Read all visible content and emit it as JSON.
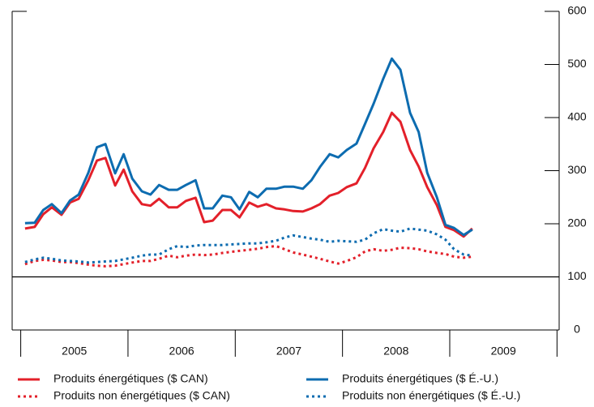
{
  "chart_data": {
    "type": "line",
    "x": [
      2005.04,
      2005.13,
      2005.21,
      2005.29,
      2005.38,
      2005.46,
      2005.54,
      2005.63,
      2005.71,
      2005.79,
      2005.88,
      2005.96,
      2006.04,
      2006.13,
      2006.21,
      2006.29,
      2006.38,
      2006.46,
      2006.54,
      2006.63,
      2006.71,
      2006.79,
      2006.88,
      2006.96,
      2007.04,
      2007.13,
      2007.21,
      2007.29,
      2007.38,
      2007.46,
      2007.54,
      2007.63,
      2007.71,
      2007.79,
      2007.88,
      2007.96,
      2008.04,
      2008.13,
      2008.21,
      2008.29,
      2008.38,
      2008.46,
      2008.54,
      2008.63,
      2008.71,
      2008.79,
      2008.88,
      2008.96,
      2009.04,
      2009.13,
      2009.21
    ],
    "xlim": [
      2004.92,
      2010.02
    ],
    "xticks": [
      2005,
      2006,
      2007,
      2008,
      2009,
      2010
    ],
    "year_labels": [
      "2005",
      "2006",
      "2007",
      "2008",
      "2009"
    ],
    "ylim": [
      0,
      600
    ],
    "yticks": [
      0,
      100,
      200,
      300,
      400,
      500,
      600
    ],
    "hline": 100,
    "series": [
      {
        "name": "Produits énergétiques ($ CAN)",
        "color": "#e3202a",
        "dash": false,
        "values": [
          191,
          194,
          218,
          231,
          217,
          240,
          247,
          282,
          319,
          324,
          272,
          302,
          261,
          237,
          234,
          247,
          231,
          231,
          243,
          249,
          203,
          206,
          226,
          226,
          212,
          240,
          232,
          237,
          229,
          227,
          224,
          223,
          229,
          237,
          253,
          258,
          269,
          276,
          305,
          342,
          373,
          409,
          392,
          339,
          308,
          269,
          235,
          194,
          188,
          176,
          191
        ]
      },
      {
        "name": "Produits énergétiques ($ É.-U.)",
        "color": "#0d6cb0",
        "dash": false,
        "values": [
          201,
          202,
          226,
          237,
          220,
          244,
          255,
          296,
          344,
          350,
          295,
          331,
          285,
          261,
          255,
          273,
          264,
          264,
          273,
          282,
          229,
          229,
          253,
          250,
          227,
          260,
          250,
          266,
          266,
          270,
          270,
          266,
          282,
          307,
          331,
          325,
          339,
          351,
          388,
          426,
          473,
          511,
          490,
          409,
          373,
          296,
          250,
          198,
          192,
          179,
          189
        ]
      },
      {
        "name": "Produits non énergétiques ($ CAN)",
        "color": "#e3202a",
        "dash": true,
        "values": [
          124,
          130,
          132,
          131,
          128,
          128,
          126,
          123,
          121,
          120,
          121,
          124,
          127,
          130,
          130,
          134,
          140,
          137,
          140,
          142,
          141,
          142,
          145,
          147,
          149,
          151,
          153,
          156,
          158,
          152,
          146,
          142,
          138,
          134,
          129,
          125,
          130,
          137,
          148,
          152,
          149,
          151,
          155,
          154,
          152,
          148,
          145,
          143,
          138,
          136,
          138
        ]
      },
      {
        "name": "Produits non énergétiques ($ É.-U.)",
        "color": "#0d6cb0",
        "dash": true,
        "values": [
          128,
          133,
          136,
          134,
          131,
          130,
          129,
          127,
          128,
          129,
          130,
          133,
          136,
          140,
          142,
          142,
          152,
          158,
          156,
          159,
          160,
          160,
          160,
          161,
          162,
          163,
          163,
          165,
          168,
          174,
          178,
          175,
          172,
          170,
          166,
          168,
          167,
          166,
          170,
          182,
          190,
          187,
          185,
          191,
          189,
          187,
          180,
          170,
          152,
          142,
          140
        ]
      }
    ]
  }
}
